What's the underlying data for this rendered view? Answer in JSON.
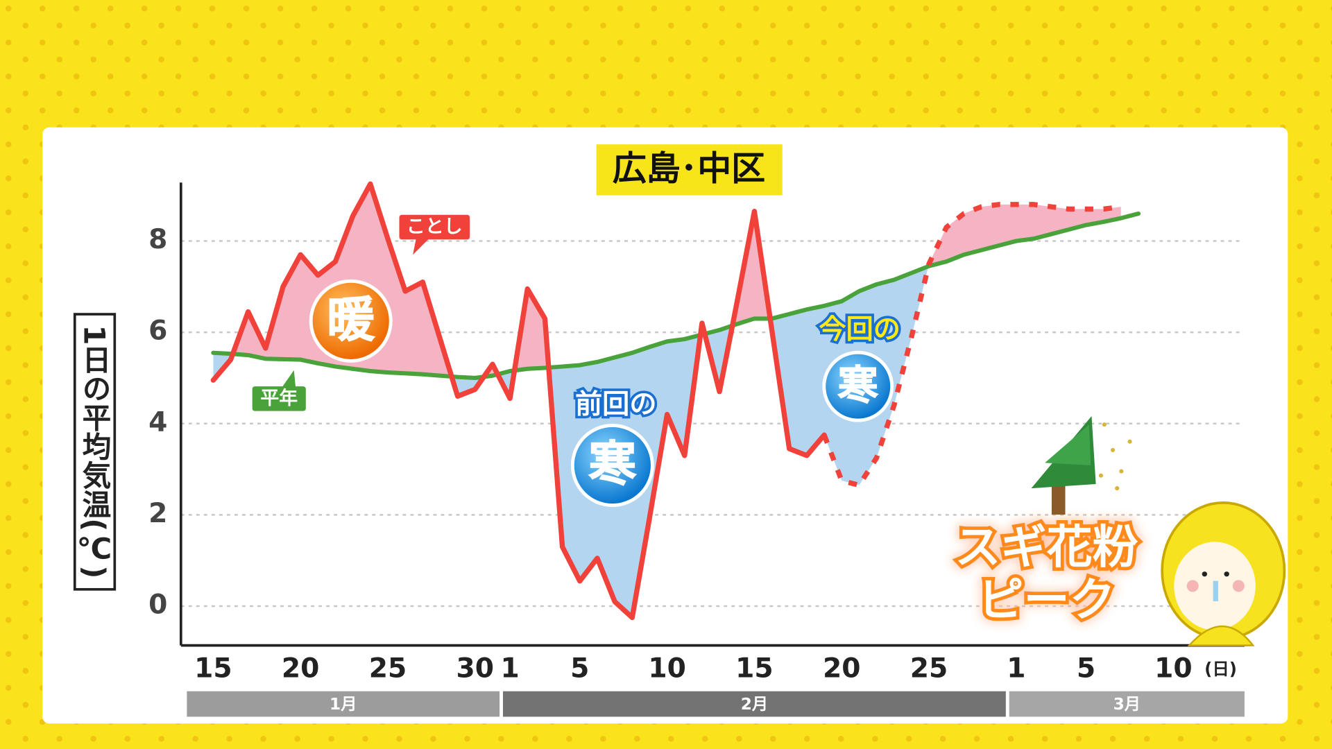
{
  "chart_data": {
    "type": "line",
    "title": "広島･中区",
    "y_label": "1日の平均気温(℃)",
    "x_unit": "(日)",
    "categories": [
      "15",
      null,
      null,
      null,
      null,
      "20",
      null,
      null,
      null,
      null,
      "25",
      null,
      null,
      null,
      null,
      "30",
      null,
      "1",
      null,
      null,
      null,
      "5",
      null,
      null,
      null,
      null,
      "10",
      null,
      null,
      null,
      null,
      "15",
      null,
      null,
      null,
      null,
      "20",
      null,
      null,
      null,
      null,
      "25",
      null,
      null,
      null,
      null,
      "1",
      null,
      null,
      null,
      "5",
      null,
      null,
      null,
      null,
      "10"
    ],
    "months": [
      {
        "label": "1月",
        "color": "#9c9c9c"
      },
      {
        "label": "2月",
        "color": "#737373"
      },
      {
        "label": "3月",
        "color": "#a6a6a6"
      }
    ],
    "series": [
      {
        "name": "ことし",
        "color": "#f0423a",
        "values": [
          4.95,
          5.4,
          6.45,
          5.65,
          7.0,
          7.7,
          7.25,
          7.55,
          8.55,
          9.25,
          8.05,
          6.9,
          7.1,
          5.85,
          4.6,
          4.75,
          5.3,
          4.55,
          6.95,
          6.3,
          1.3,
          0.55,
          1.05,
          0.1,
          -0.25,
          1.95,
          4.2,
          3.3,
          6.2,
          4.7,
          6.65,
          8.65,
          6.05,
          3.45,
          3.3,
          3.75,
          null,
          null,
          null,
          null,
          null,
          null,
          null,
          null,
          null,
          null,
          null,
          null,
          null,
          null,
          null,
          null,
          null,
          null,
          null,
          null
        ]
      },
      {
        "color": "#f0423a",
        "dashed": true,
        "values": [
          null,
          null,
          null,
          null,
          null,
          null,
          null,
          null,
          null,
          null,
          null,
          null,
          null,
          null,
          null,
          null,
          null,
          null,
          null,
          null,
          null,
          null,
          null,
          null,
          null,
          null,
          null,
          null,
          null,
          null,
          null,
          null,
          null,
          null,
          null,
          3.75,
          2.75,
          2.65,
          3.25,
          4.4,
          5.9,
          7.5,
          8.3,
          8.6,
          8.75,
          8.8,
          8.8,
          8.8,
          8.75,
          8.7,
          8.7,
          8.7,
          8.75,
          null,
          null,
          null
        ]
      },
      {
        "name": "平年",
        "color": "#4aa23a",
        "values": [
          5.55,
          5.53,
          5.5,
          5.42,
          5.41,
          5.4,
          5.32,
          5.25,
          5.2,
          5.15,
          5.12,
          5.1,
          5.08,
          5.05,
          5.02,
          5.0,
          5.05,
          5.15,
          5.2,
          5.22,
          5.25,
          5.28,
          5.35,
          5.45,
          5.55,
          5.68,
          5.8,
          5.85,
          5.95,
          6.05,
          6.18,
          6.3,
          6.3,
          6.4,
          6.5,
          6.58,
          6.68,
          6.9,
          7.05,
          7.15,
          7.3,
          7.45,
          7.55,
          7.7,
          7.8,
          7.9,
          8.0,
          8.05,
          8.15,
          8.25,
          8.35,
          8.42,
          8.5,
          8.6,
          null,
          null
        ]
      }
    ],
    "warm_color": "#f4b4c4",
    "cold_color": "#b3d5f0",
    "ylim": [
      -0.86,
      9.28
    ],
    "yticks": [
      0,
      2,
      4,
      6,
      8
    ],
    "grid": true,
    "annotations": [
      "暖",
      "前回の",
      "寒",
      "今回の",
      "寒",
      "スギ花粉",
      "ピーク"
    ]
  }
}
